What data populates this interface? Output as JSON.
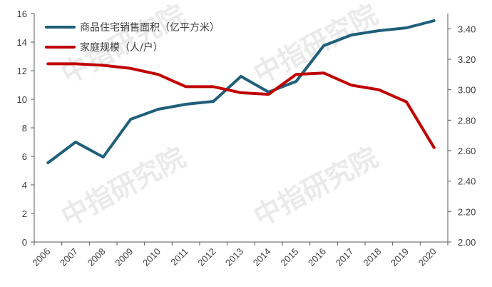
{
  "chart_data": {
    "type": "line",
    "categories": [
      "2006",
      "2007",
      "2008",
      "2009",
      "2010",
      "2011",
      "2012",
      "2013",
      "2014",
      "2015",
      "2016",
      "2017",
      "2018",
      "2019",
      "2020"
    ],
    "series": [
      {
        "name": "商品住宅销售面积（亿平方米）",
        "axis": "left",
        "color": "#1f5f7a",
        "values": [
          5.55,
          7.0,
          5.95,
          8.6,
          9.3,
          9.65,
          9.85,
          11.6,
          10.5,
          11.25,
          13.75,
          14.5,
          14.8,
          15.0,
          15.5
        ]
      },
      {
        "name": "家庭规模（人/户）",
        "axis": "right",
        "color": "#c00000",
        "values": [
          3.17,
          3.17,
          3.16,
          3.14,
          3.1,
          3.02,
          3.02,
          2.98,
          2.97,
          3.1,
          3.11,
          3.03,
          3.0,
          2.92,
          2.62
        ]
      }
    ],
    "y_left": {
      "min": 0,
      "max": 16,
      "ticks": [
        "0",
        "2",
        "4",
        "6",
        "8",
        "10",
        "12",
        "14",
        "16"
      ]
    },
    "y_right": {
      "min": 2.0,
      "max": 3.5,
      "ticks": [
        "2.00",
        "2.20",
        "2.40",
        "2.60",
        "2.80",
        "3.00",
        "3.20",
        "3.40"
      ]
    },
    "legend_position": "top-left",
    "grid": false,
    "watermark": "中指研究院"
  }
}
